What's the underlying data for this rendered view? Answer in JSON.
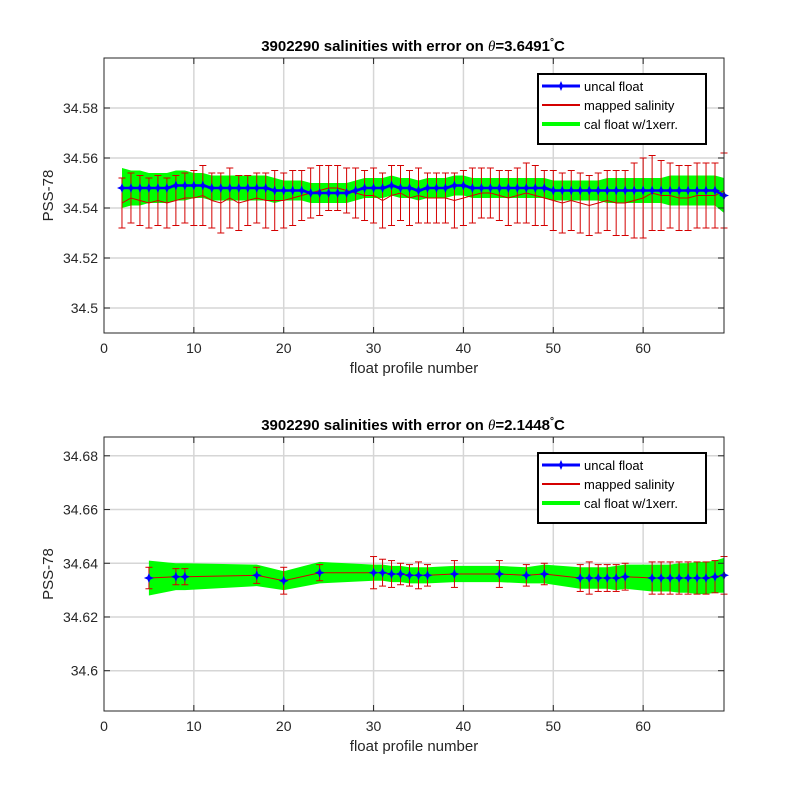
{
  "chart_data": [
    {
      "type": "line",
      "title": {
        "prefix": "3902290 salinities with error on ",
        "symbol": "θ",
        "value": "=3.6491",
        "degree": "°",
        "unit": "C"
      },
      "xlabel": "float profile number",
      "ylabel": "PSS-78",
      "xlim": [
        0,
        69
      ],
      "ylim": [
        34.49,
        34.6
      ],
      "xticks": [
        "0",
        "10",
        "20",
        "30",
        "40",
        "50",
        "60"
      ],
      "yticks": [
        "34.5",
        "34.52",
        "34.54",
        "34.56",
        "34.58"
      ],
      "grid": true,
      "legend": {
        "position": "top-right",
        "entries": [
          "uncal float",
          "mapped salinity",
          "cal float w/1xerr."
        ]
      },
      "colors": {
        "uncal": "#0000ff",
        "mapped": "#d40000",
        "cal": "#00ff00"
      },
      "series": [
        {
          "name": "uncal float",
          "x": [
            2,
            3,
            4,
            5,
            6,
            7,
            8,
            9,
            10,
            11,
            12,
            13,
            14,
            15,
            16,
            17,
            18,
            19,
            20,
            21,
            22,
            23,
            24,
            25,
            26,
            27,
            28,
            29,
            30,
            31,
            32,
            33,
            34,
            35,
            36,
            37,
            38,
            39,
            40,
            41,
            42,
            43,
            44,
            45,
            46,
            47,
            48,
            49,
            50,
            51,
            52,
            53,
            54,
            55,
            56,
            57,
            58,
            59,
            60,
            61,
            62,
            63,
            64,
            65,
            66,
            67,
            68,
            69
          ],
          "values": [
            34.548,
            34.548,
            34.548,
            34.548,
            34.548,
            34.548,
            34.549,
            34.549,
            34.549,
            34.549,
            34.548,
            34.548,
            34.548,
            34.548,
            34.548,
            34.548,
            34.548,
            34.547,
            34.547,
            34.547,
            34.547,
            34.546,
            34.546,
            34.546,
            34.546,
            34.546,
            34.547,
            34.548,
            34.548,
            34.548,
            34.549,
            34.548,
            34.548,
            34.547,
            34.548,
            34.548,
            34.548,
            34.549,
            34.549,
            34.548,
            34.548,
            34.548,
            34.548,
            34.548,
            34.548,
            34.548,
            34.548,
            34.548,
            34.547,
            34.547,
            34.547,
            34.547,
            34.547,
            34.547,
            34.547,
            34.547,
            34.547,
            34.547,
            34.547,
            34.547,
            34.547,
            34.547,
            34.547,
            34.547,
            34.547,
            34.547,
            34.547,
            34.545
          ]
        },
        {
          "name": "mapped salinity",
          "values": [
            34.542,
            34.544,
            34.543,
            34.542,
            34.543,
            34.542,
            34.543,
            34.544,
            34.544,
            34.545,
            34.543,
            34.542,
            34.544,
            34.542,
            34.543,
            34.544,
            34.543,
            34.543,
            34.543,
            34.544,
            34.545,
            34.546,
            34.547,
            34.548,
            34.548,
            34.547,
            34.546,
            34.545,
            34.545,
            34.543,
            34.545,
            34.546,
            34.544,
            34.545,
            34.544,
            34.544,
            34.544,
            34.543,
            34.544,
            34.545,
            34.546,
            34.546,
            34.545,
            34.544,
            34.545,
            34.546,
            34.545,
            34.544,
            34.543,
            34.542,
            34.543,
            34.542,
            34.541,
            34.542,
            34.543,
            34.542,
            34.542,
            34.543,
            34.544,
            34.546,
            34.545,
            34.545,
            34.544,
            34.544,
            34.545,
            34.545,
            34.545,
            34.547
          ],
          "errors": [
            0.01,
            0.01,
            0.01,
            0.01,
            0.01,
            0.01,
            0.01,
            0.01,
            0.011,
            0.012,
            0.011,
            0.012,
            0.012,
            0.011,
            0.01,
            0.01,
            0.011,
            0.012,
            0.011,
            0.011,
            0.01,
            0.01,
            0.01,
            0.009,
            0.009,
            0.009,
            0.01,
            0.01,
            0.011,
            0.011,
            0.012,
            0.011,
            0.011,
            0.011,
            0.01,
            0.01,
            0.01,
            0.011,
            0.011,
            0.011,
            0.01,
            0.01,
            0.01,
            0.011,
            0.011,
            0.012,
            0.012,
            0.011,
            0.012,
            0.012,
            0.012,
            0.012,
            0.012,
            0.012,
            0.012,
            0.013,
            0.013,
            0.015,
            0.016,
            0.015,
            0.014,
            0.013,
            0.013,
            0.013,
            0.013,
            0.013,
            0.013,
            0.015
          ]
        },
        {
          "name": "cal float w/1xerr.",
          "band_half_width": [
            0.008,
            0.007,
            0.007,
            0.006,
            0.006,
            0.006,
            0.006,
            0.006,
            0.005,
            0.005,
            0.005,
            0.005,
            0.005,
            0.005,
            0.005,
            0.005,
            0.005,
            0.005,
            0.004,
            0.004,
            0.004,
            0.004,
            0.004,
            0.004,
            0.004,
            0.004,
            0.004,
            0.004,
            0.004,
            0.004,
            0.004,
            0.004,
            0.004,
            0.004,
            0.004,
            0.004,
            0.004,
            0.004,
            0.004,
            0.004,
            0.004,
            0.004,
            0.004,
            0.004,
            0.004,
            0.004,
            0.004,
            0.004,
            0.004,
            0.004,
            0.004,
            0.004,
            0.004,
            0.004,
            0.005,
            0.005,
            0.005,
            0.005,
            0.005,
            0.005,
            0.005,
            0.006,
            0.006,
            0.006,
            0.006,
            0.006,
            0.006,
            0.007
          ]
        }
      ]
    },
    {
      "type": "line",
      "title": {
        "prefix": "3902290 salinities with error on ",
        "symbol": "θ",
        "value": "=2.1448",
        "degree": "°",
        "unit": "C"
      },
      "xlabel": "float profile number",
      "ylabel": "PSS-78",
      "xlim": [
        0,
        69
      ],
      "ylim": [
        34.585,
        34.687
      ],
      "xticks": [
        "0",
        "10",
        "20",
        "30",
        "40",
        "50",
        "60"
      ],
      "yticks": [
        "34.6",
        "34.62",
        "34.64",
        "34.66",
        "34.68"
      ],
      "grid": true,
      "legend": {
        "position": "top-right",
        "entries": [
          "uncal float",
          "mapped salinity",
          "cal float w/1xerr."
        ]
      },
      "colors": {
        "uncal": "#0000ff",
        "mapped": "#d40000",
        "cal": "#00ff00"
      },
      "series": [
        {
          "name": "uncal float",
          "x": [
            5,
            8,
            9,
            17,
            20,
            24,
            30,
            31,
            32,
            33,
            34,
            35,
            36,
            39,
            44,
            47,
            49,
            53,
            54,
            55,
            56,
            57,
            58,
            61,
            62,
            63,
            64,
            65,
            66,
            67,
            68,
            69
          ],
          "values": [
            34.6345,
            34.635,
            34.635,
            34.6355,
            34.6335,
            34.6365,
            34.6365,
            34.6365,
            34.636,
            34.636,
            34.6355,
            34.6355,
            34.6355,
            34.636,
            34.636,
            34.6355,
            34.636,
            34.6345,
            34.6345,
            34.6345,
            34.6345,
            34.6345,
            34.635,
            34.6345,
            34.6345,
            34.6345,
            34.6345,
            34.6345,
            34.6345,
            34.6345,
            34.635,
            34.6355
          ]
        },
        {
          "name": "mapped salinity",
          "values": [
            34.6345,
            34.635,
            34.635,
            34.6355,
            34.6335,
            34.6365,
            34.6365,
            34.6365,
            34.636,
            34.636,
            34.6355,
            34.6355,
            34.6355,
            34.636,
            34.636,
            34.6355,
            34.636,
            34.6345,
            34.6345,
            34.6345,
            34.6345,
            34.6345,
            34.635,
            34.6345,
            34.6345,
            34.6345,
            34.6345,
            34.6345,
            34.6345,
            34.6345,
            34.635,
            34.6355
          ],
          "errors": [
            0.004,
            0.003,
            0.003,
            0.003,
            0.005,
            0.003,
            0.006,
            0.005,
            0.005,
            0.004,
            0.004,
            0.005,
            0.004,
            0.005,
            0.005,
            0.004,
            0.004,
            0.005,
            0.006,
            0.005,
            0.005,
            0.005,
            0.005,
            0.006,
            0.006,
            0.006,
            0.006,
            0.006,
            0.006,
            0.006,
            0.006,
            0.007
          ]
        },
        {
          "name": "cal float w/1xerr.",
          "band_half_width": [
            0.0065,
            0.005,
            0.005,
            0.004,
            0.0035,
            0.004,
            0.003,
            0.003,
            0.003,
            0.003,
            0.003,
            0.003,
            0.003,
            0.003,
            0.003,
            0.003,
            0.0035,
            0.004,
            0.004,
            0.004,
            0.004,
            0.0045,
            0.0045,
            0.005,
            0.005,
            0.005,
            0.0055,
            0.0055,
            0.006,
            0.006,
            0.006,
            0.0065
          ]
        }
      ]
    }
  ]
}
